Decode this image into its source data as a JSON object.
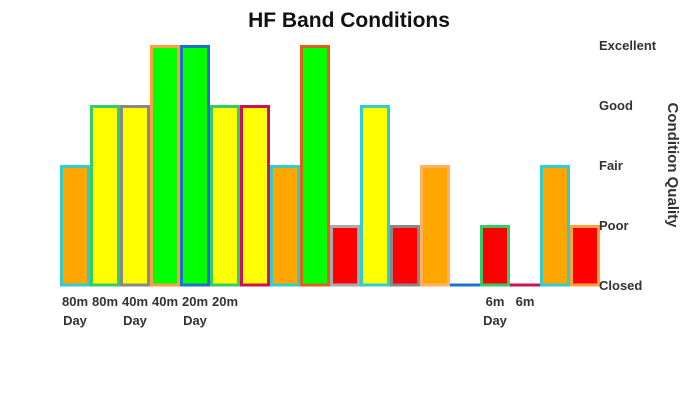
{
  "chart_data": {
    "type": "bar",
    "title": "HF Band Conditions",
    "ylabel": "Condition Quality",
    "xlabel": "",
    "y_levels": [
      "Closed",
      "Poor",
      "Fair",
      "Good",
      "Excellent"
    ],
    "ylim": [
      0,
      4
    ],
    "grid": false,
    "legend": "none",
    "bars": [
      {
        "label": [
          "80m",
          "Day"
        ],
        "value": 2,
        "fill": "#FFA500",
        "stroke": "#33CCCC"
      },
      {
        "label": [
          "80m"
        ],
        "value": 3,
        "fill": "#FFFF00",
        "stroke": "#33CC66"
      },
      {
        "label": [
          "40m",
          "Day"
        ],
        "value": 3,
        "fill": "#FFFF00",
        "stroke": "#888888"
      },
      {
        "label": [
          "40m"
        ],
        "value": 4,
        "fill": "#00FF00",
        "stroke": "#FFA040"
      },
      {
        "label": [
          "20m",
          "Day"
        ],
        "value": 4,
        "fill": "#00FF00",
        "stroke": "#1A73C8"
      },
      {
        "label": [
          "20m"
        ],
        "value": 3,
        "fill": "#FFFF00",
        "stroke": "#33CC66"
      },
      {
        "label": [],
        "value": 3,
        "fill": "#FFFF00",
        "stroke": "#CC1155"
      },
      {
        "label": [],
        "value": 2,
        "fill": "#FFA500",
        "stroke": "#33CCCC"
      },
      {
        "label": [],
        "value": 4,
        "fill": "#00FF00",
        "stroke": "#E0601A"
      },
      {
        "label": [],
        "value": 1,
        "fill": "#FF0000",
        "stroke": "#AAAAAA"
      },
      {
        "label": [],
        "value": 3,
        "fill": "#FFFF00",
        "stroke": "#33CCCC"
      },
      {
        "label": [],
        "value": 1,
        "fill": "#FF0000",
        "stroke": "#888888"
      },
      {
        "label": [],
        "value": 2,
        "fill": "#FFA500",
        "stroke": "#FFB060"
      },
      {
        "label": [],
        "value": 0,
        "fill": "#1A73C8",
        "stroke": "#1A73C8"
      },
      {
        "label": [
          "6m",
          "Day"
        ],
        "value": 1,
        "fill": "#FF0000",
        "stroke": "#33CC66"
      },
      {
        "label": [
          "6m"
        ],
        "value": 0,
        "fill": "#CC1155",
        "stroke": "#CC1155"
      },
      {
        "label": [],
        "value": 2,
        "fill": "#FFA500",
        "stroke": "#33CCCC"
      },
      {
        "label": [],
        "value": 1,
        "fill": "#FF0000",
        "stroke": "#FFA040"
      }
    ]
  }
}
